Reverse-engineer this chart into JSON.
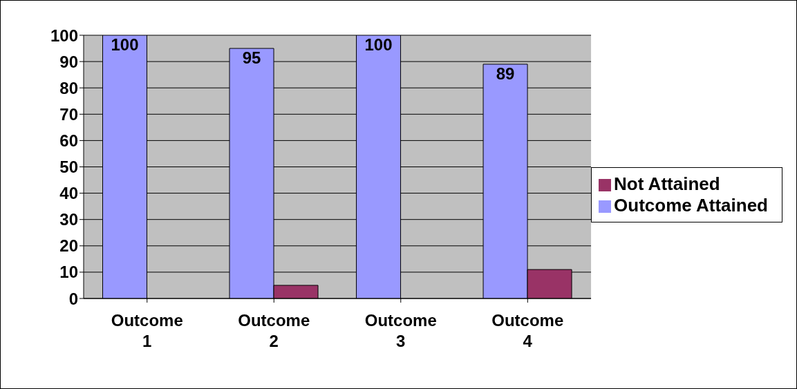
{
  "chart_data": {
    "type": "bar",
    "categories": [
      "Outcome 1",
      "Outcome 2",
      "Outcome 3",
      "Outcome 4"
    ],
    "series": [
      {
        "name": "Outcome Attained",
        "color": "#9999ff",
        "values": [
          100,
          95,
          100,
          89
        ],
        "value_labels": [
          "100",
          "95",
          "100",
          "89"
        ]
      },
      {
        "name": "Not Attained",
        "color": "#993366",
        "values": [
          0,
          5,
          0,
          11
        ]
      }
    ],
    "ylim": [
      0,
      100
    ],
    "yticks": [
      0,
      10,
      20,
      30,
      40,
      50,
      60,
      70,
      80,
      90,
      100
    ],
    "grid": "y",
    "legend": "right"
  }
}
